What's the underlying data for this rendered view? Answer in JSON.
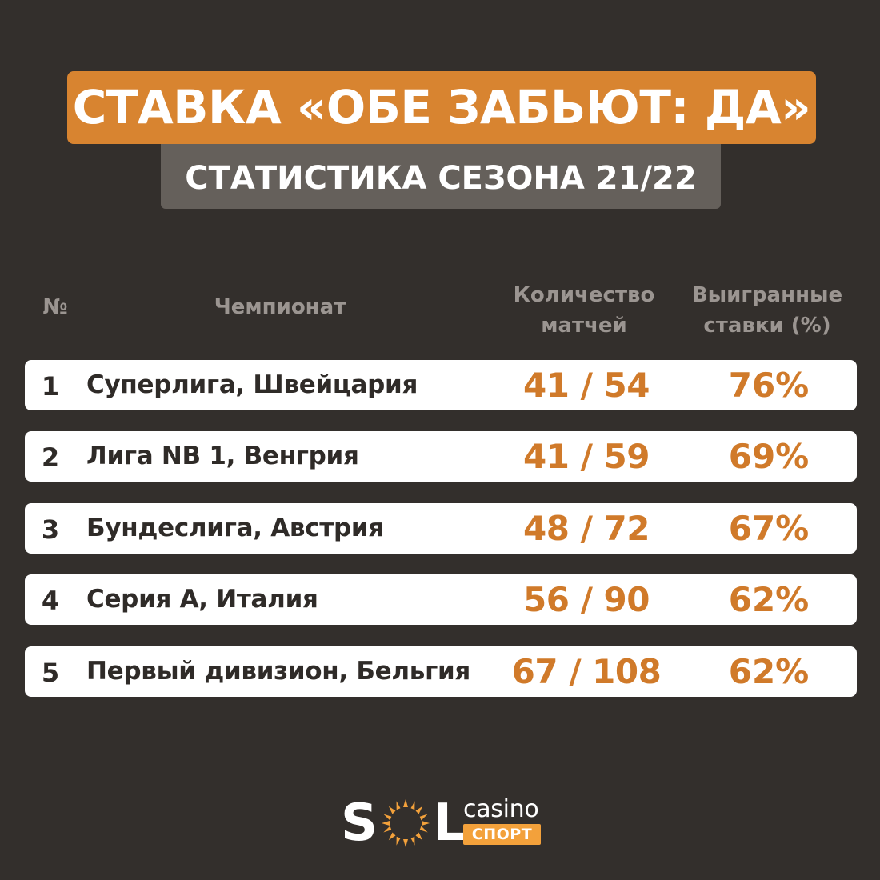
{
  "title": {
    "main": "СТАВКА «ОБЕ ЗАБЬЮТ: ДА»",
    "sub": "СТАТИСТИКА СЕЗОНА 21/22"
  },
  "table": {
    "headers": {
      "num": "№",
      "championship": "Чемпионат",
      "matches_line1": "Количество",
      "matches_line2": "матчей",
      "won_line1": "Выигранные",
      "won_line2": "ставки (%)"
    },
    "rows": [
      {
        "num": "1",
        "championship": "Суперлига, Швейцария",
        "matches": "41 / 54",
        "won": "76%"
      },
      {
        "num": "2",
        "championship": "Лига NB 1, Венгрия",
        "matches": "41 / 59",
        "won": "69%"
      },
      {
        "num": "3",
        "championship": "Бундеслига, Австрия",
        "matches": "48 / 72",
        "won": "67%"
      },
      {
        "num": "4",
        "championship": "Серия А, Италия",
        "matches": "56 / 90",
        "won": "62%"
      },
      {
        "num": "5",
        "championship": "Первый дивизион, Бельгия",
        "matches": "67 / 108",
        "won": "62%"
      }
    ]
  },
  "logo": {
    "s": "S",
    "l": "L",
    "sun_icon": "sun-icon",
    "casino": "casino",
    "sport": "СПОРТ"
  },
  "colors": {
    "background": "#332f2c",
    "accent_orange": "#d88430",
    "value_orange": "#d07a2a",
    "subtitle_gray": "#65605b",
    "header_gray": "#9b9591",
    "logo_orange": "#f3a13b"
  }
}
